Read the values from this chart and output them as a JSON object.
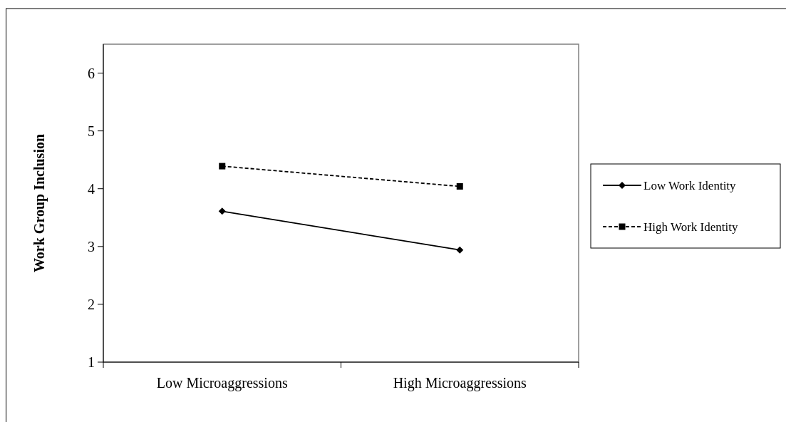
{
  "chart_data": {
    "type": "line",
    "ylabel": "Work Group Inclusion",
    "categories": [
      "Low Microaggressions",
      "High Microaggressions"
    ],
    "series": [
      {
        "name": "Low Work Identity",
        "color": "#000000",
        "values": [
          3.61,
          2.94
        ],
        "marker": "diamond",
        "line_style": "solid"
      },
      {
        "name": "High Work Identity",
        "color": "#000000",
        "values": [
          4.39,
          4.04
        ],
        "marker": "square",
        "line_style": "dashed"
      }
    ],
    "ylim": [
      1,
      6.5
    ],
    "yticks": [
      1,
      2,
      3,
      4,
      5,
      6
    ],
    "grid": false,
    "legend": "right"
  }
}
